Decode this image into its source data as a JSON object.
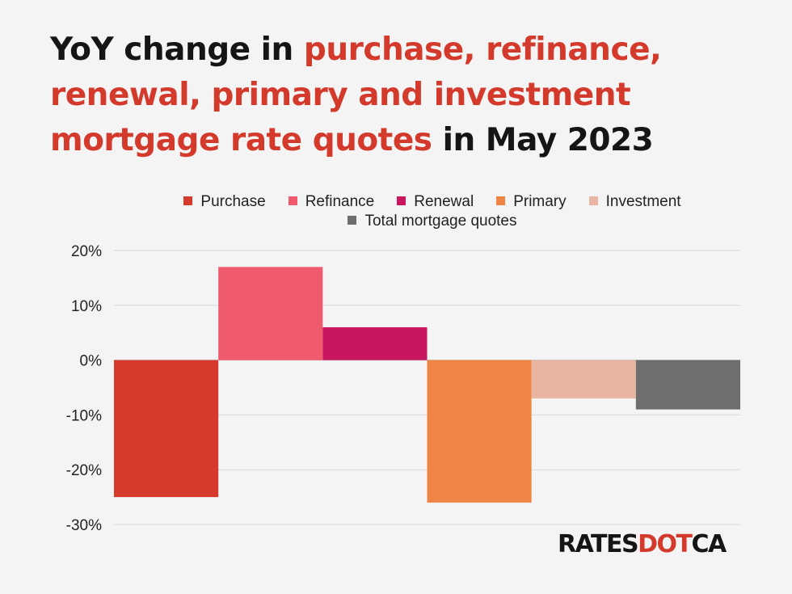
{
  "title": {
    "part1": "YoY change in ",
    "part2": "purchase, refinance, renewal, primary and investment mortgage rate quotes",
    "part3": " in May 2023"
  },
  "chart_data": {
    "type": "bar",
    "categories": [
      "Purchase",
      "Refinance",
      "Renewal",
      "Primary",
      "Investment",
      "Total mortgage quotes"
    ],
    "values": [
      -25,
      17,
      6,
      -26,
      -7,
      -9
    ],
    "colors": [
      "#d63a2c",
      "#ef5a6f",
      "#c9175f",
      "#ef8545",
      "#e8b5a2",
      "#6e6e6e"
    ],
    "ylim": [
      -30,
      20
    ],
    "yticks": [
      20,
      10,
      0,
      -10,
      -20,
      -30
    ],
    "ytick_labels": [
      "20%",
      "10%",
      "0%",
      "-10%",
      "-20%",
      "-30%"
    ],
    "legend_position": "top",
    "grid": true
  },
  "logo": {
    "left": "RATES",
    "mid": "DOT",
    "right": "CA"
  }
}
